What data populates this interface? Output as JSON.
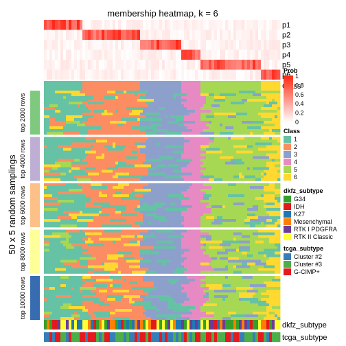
{
  "chart_data": {
    "type": "heatmap",
    "title": "membership heatmap, k = 6",
    "ylabel": "50 x 5 random samplings",
    "colors": {
      "1": "#66C2A5",
      "2": "#FC8D62",
      "3": "#8DA0CB",
      "4": "#E78AC3",
      "5": "#A6D854",
      "6": "#FFD92F"
    },
    "column_groups": [
      {
        "class": "1",
        "n": 14
      },
      {
        "class": "2",
        "n": 21
      },
      {
        "class": "3",
        "n": 15
      },
      {
        "class": "4",
        "n": 7
      },
      {
        "class": "5",
        "n": 22
      },
      {
        "class": "6",
        "n": 7
      }
    ],
    "prob_rows": [
      "p1",
      "p2",
      "p3",
      "p4",
      "p5",
      "p6"
    ],
    "class_row_label": "Class",
    "row_groups": [
      "top 2000 rows",
      "top 4000 rows",
      "top 6000 rows",
      "top 8000 rows",
      "top 10000 rows"
    ],
    "row_group_colors": [
      "#7FC97F",
      "#BEAED4",
      "#FDC086",
      "#FFFF99",
      "#386CB0"
    ],
    "bottom_annotations": [
      "dkfz_subtype",
      "tcga_subtype"
    ],
    "legends": {
      "prob": {
        "title": "Prob",
        "ticks": [
          "1",
          "0.8",
          "0.6",
          "0.4",
          "0.2",
          "0"
        ]
      },
      "class": {
        "title": "Class",
        "items": [
          "1",
          "2",
          "3",
          "4",
          "5",
          "6"
        ]
      },
      "dkfz_subtype": {
        "title": "dkfz_subtype",
        "items": [
          {
            "label": "G34",
            "color": "#33A02C"
          },
          {
            "label": "IDH",
            "color": "#E31A1C"
          },
          {
            "label": "K27",
            "color": "#1F78B4"
          },
          {
            "label": "Mesenchymal",
            "color": "#FF7F00"
          },
          {
            "label": "RTK I PDGFRA",
            "color": "#6A3D9A"
          },
          {
            "label": "RTK II Classic",
            "color": "#FFFF33"
          }
        ]
      },
      "tcga_subtype": {
        "title": "tcga_subtype",
        "items": [
          {
            "label": "Cluster #2",
            "color": "#377EB8"
          },
          {
            "label": "Cluster #3",
            "color": "#4DAF4A"
          },
          {
            "label": "G-CIMP+",
            "color": "#E41A1C"
          }
        ]
      }
    }
  }
}
